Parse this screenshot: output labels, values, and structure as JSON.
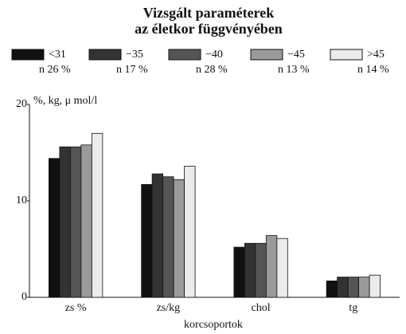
{
  "chart_data": {
    "type": "bar",
    "title": [
      "Vizsgált paraméterek",
      "az életkor függvényében"
    ],
    "y_label": "%, kg, μ mol/l",
    "x_label": "korcsoportok",
    "categories": [
      "zs %",
      "zs/kg",
      "chol",
      "tg"
    ],
    "series": [
      {
        "name": "<31",
        "note": "n 26 %",
        "color": "#111111",
        "values": [
          14.4,
          11.7,
          5.2,
          1.7
        ]
      },
      {
        "name": "−35",
        "note": "n 17 %",
        "color": "#333333",
        "values": [
          15.6,
          12.8,
          5.6,
          2.1
        ]
      },
      {
        "name": "−40",
        "note": "n 28 %",
        "color": "#555555",
        "values": [
          15.6,
          12.5,
          5.6,
          2.1
        ]
      },
      {
        "name": "−45",
        "note": "n 13 %",
        "color": "#9a9a9a",
        "values": [
          15.8,
          12.2,
          6.4,
          2.1
        ]
      },
      {
        "name": ">45",
        "note": "n 14 %",
        "color": "#ebebeb",
        "values": [
          17.0,
          13.6,
          6.1,
          2.3
        ]
      }
    ],
    "ylim": [
      0,
      20
    ],
    "yticks": [
      0,
      10,
      20
    ]
  }
}
